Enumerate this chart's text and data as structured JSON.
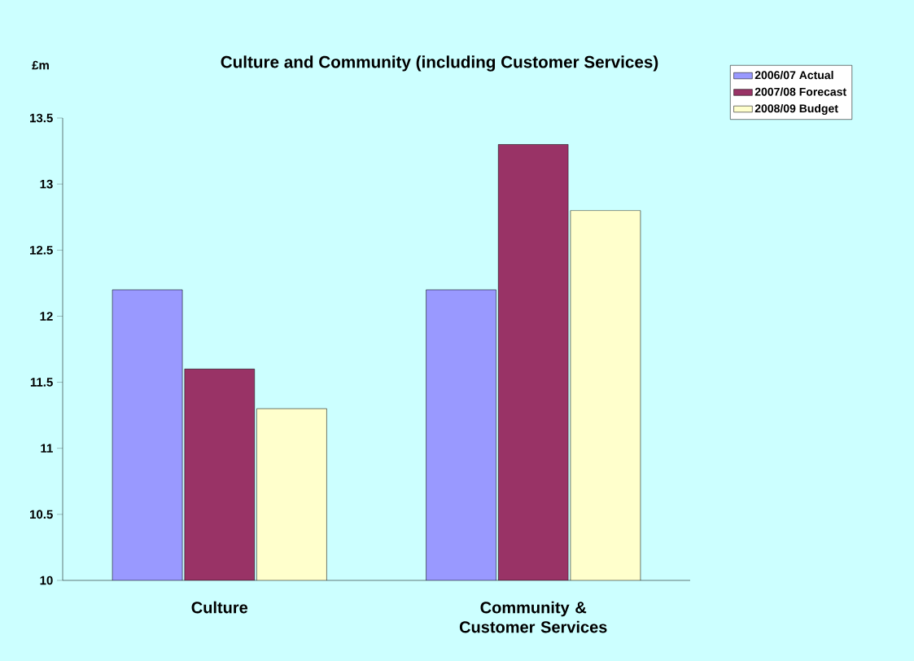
{
  "chart_data": {
    "type": "bar",
    "title": "Culture and Community (including Customer Services)",
    "ylabel": "£m",
    "categories": [
      "Culture",
      "Community & Customer Services"
    ],
    "series": [
      {
        "name": "2006/07 Actual",
        "color": "#9999ff",
        "values": [
          12.2,
          12.2
        ]
      },
      {
        "name": "2007/08 Forecast",
        "color": "#993366",
        "values": [
          11.6,
          13.3
        ]
      },
      {
        "name": "2008/09 Budget",
        "color": "#ffffcc",
        "values": [
          11.3,
          12.8
        ]
      }
    ],
    "ylim": [
      10,
      13.5
    ],
    "yticks": [
      10,
      10.5,
      11,
      11.5,
      12,
      12.5,
      13,
      13.5
    ],
    "grid": false,
    "legend": "top right"
  }
}
